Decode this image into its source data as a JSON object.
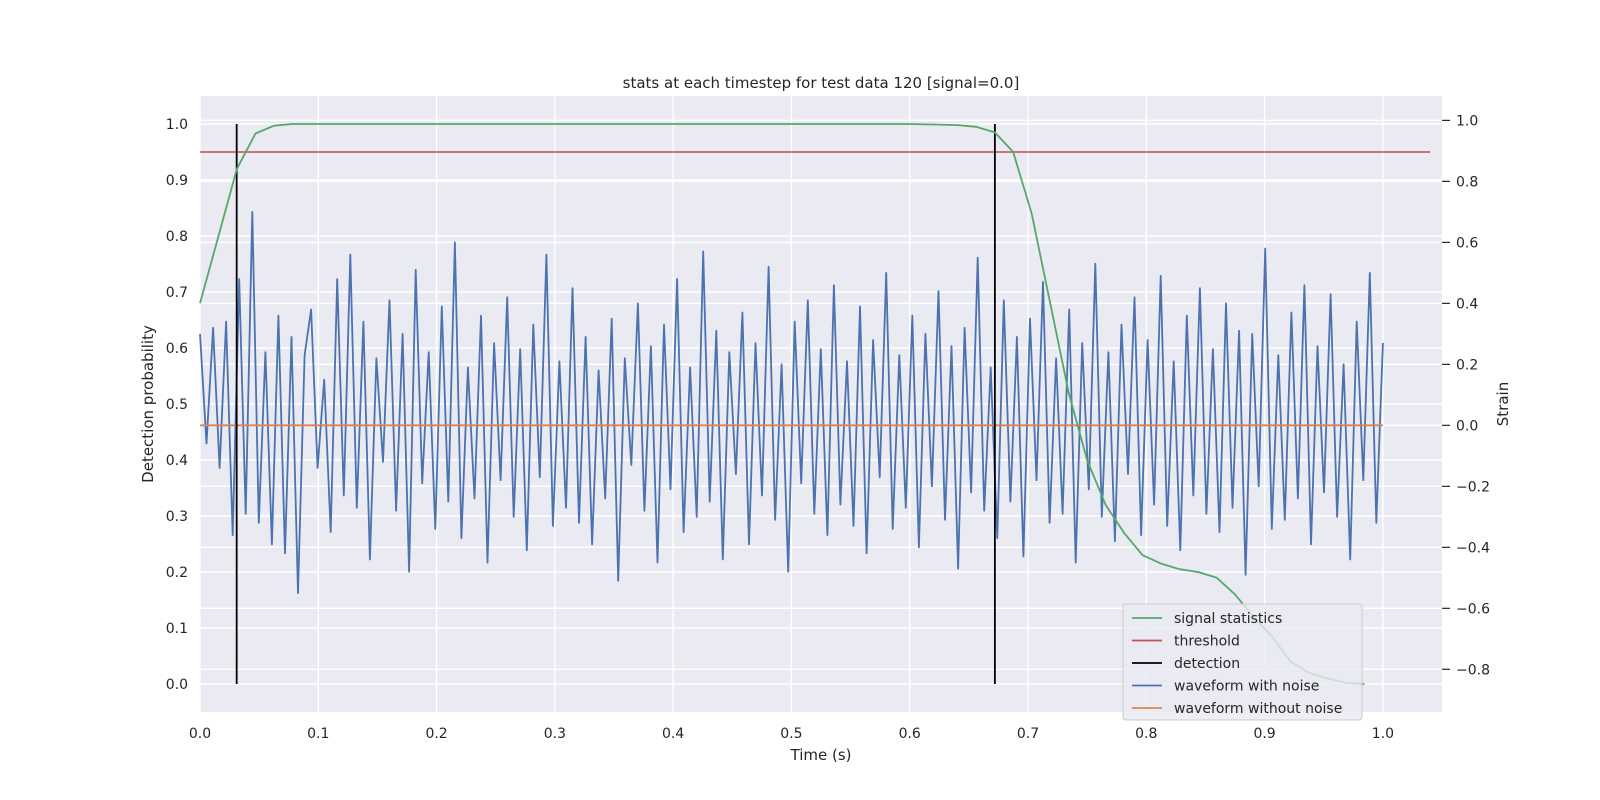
{
  "chart_data": {
    "type": "line",
    "title": "stats at each timestep for test data 120 [signal=0.0]",
    "xlabel": "Time (s)",
    "ylabel": "Detection probability",
    "y2label": "Strain",
    "xlim": [
      0.0,
      1.05
    ],
    "ylim": [
      -0.05,
      1.05
    ],
    "y2lim": [
      -0.94,
      1.08
    ],
    "xticks": [
      "0.0",
      "0.1",
      "0.2",
      "0.3",
      "0.4",
      "0.5",
      "0.6",
      "0.7",
      "0.8",
      "0.9",
      "1.0"
    ],
    "yticks": [
      "0.0",
      "0.1",
      "0.2",
      "0.3",
      "0.4",
      "0.5",
      "0.6",
      "0.7",
      "0.8",
      "0.9",
      "1.0"
    ],
    "y2ticks": [
      "−0.8",
      "−0.6",
      "−0.4",
      "−0.2",
      "0.0",
      "0.2",
      "0.4",
      "0.6",
      "0.8",
      "1.0"
    ],
    "grid": true,
    "legend_position": "bottom-right",
    "legend": [
      {
        "label": "signal statistics",
        "color": "#55a868"
      },
      {
        "label": "threshold",
        "color": "#c44e52"
      },
      {
        "label": "detection",
        "color": "#000000"
      },
      {
        "label": "waveform with noise",
        "color": "#4c72b0"
      },
      {
        "label": "waveform without noise",
        "color": "#dd8452"
      }
    ],
    "signal_statistics": {
      "x": [
        0.0,
        0.0156,
        0.0312,
        0.0469,
        0.0625,
        0.0781,
        0.1,
        0.2,
        0.3,
        0.4,
        0.5,
        0.6,
        0.625,
        0.6406,
        0.6562,
        0.6719,
        0.6875,
        0.7031,
        0.7188,
        0.7344,
        0.75,
        0.7656,
        0.7812,
        0.7969,
        0.8125,
        0.8281,
        0.8438,
        0.8594,
        0.875,
        0.8906,
        0.9062,
        0.9219,
        0.9375,
        0.9531,
        0.9688,
        0.9844
      ],
      "y": [
        0.68,
        0.8,
        0.92,
        0.983,
        0.997,
        1.0,
        1.0,
        1.0,
        1.0,
        1.0,
        1.0,
        1.0,
        0.999,
        0.998,
        0.995,
        0.985,
        0.95,
        0.84,
        0.68,
        0.52,
        0.4,
        0.32,
        0.27,
        0.23,
        0.215,
        0.205,
        0.2,
        0.19,
        0.16,
        0.12,
        0.085,
        0.04,
        0.02,
        0.01,
        0.002,
        0.0
      ]
    },
    "threshold": 0.95,
    "detections_x": [
      0.031,
      0.672
    ],
    "waveform_without_noise": {
      "x": [
        0.0,
        1.0
      ],
      "y": [
        0.0,
        0.0
      ]
    },
    "waveform_with_noise": {
      "x_start": 0.0,
      "x_end": 1.0,
      "y": [
        0.3,
        -0.06,
        0.32,
        -0.14,
        0.34,
        -0.36,
        0.48,
        -0.29,
        0.7,
        -0.32,
        0.24,
        -0.39,
        0.36,
        -0.42,
        0.29,
        -0.55,
        0.23,
        0.38,
        -0.14,
        0.15,
        -0.35,
        0.48,
        -0.23,
        0.56,
        -0.27,
        0.34,
        -0.44,
        0.22,
        -0.12,
        0.41,
        -0.28,
        0.3,
        -0.48,
        0.51,
        -0.19,
        0.24,
        -0.34,
        0.39,
        -0.25,
        0.6,
        -0.37,
        0.19,
        -0.24,
        0.36,
        -0.45,
        0.27,
        -0.18,
        0.42,
        -0.3,
        0.25,
        -0.41,
        0.33,
        -0.17,
        0.56,
        -0.33,
        0.21,
        -0.27,
        0.45,
        -0.32,
        0.29,
        -0.39,
        0.18,
        -0.24,
        0.35,
        -0.51,
        0.22,
        -0.13,
        0.4,
        -0.28,
        0.26,
        -0.45,
        0.33,
        -0.21,
        0.48,
        -0.35,
        0.19,
        -0.3,
        0.57,
        -0.25,
        0.31,
        -0.44,
        0.24,
        -0.16,
        0.37,
        -0.39,
        0.27,
        -0.23,
        0.52,
        -0.31,
        0.2,
        -0.48,
        0.34,
        -0.19,
        0.41,
        -0.29,
        0.25,
        -0.36,
        0.46,
        -0.26,
        0.21,
        -0.33,
        0.39,
        -0.42,
        0.28,
        -0.17,
        0.5,
        -0.34,
        0.23,
        -0.27,
        0.36,
        -0.4,
        0.3,
        -0.2,
        0.44,
        -0.31,
        0.26,
        -0.47,
        0.32,
        -0.22,
        0.55,
        -0.28,
        0.19,
        -0.37,
        0.41,
        -0.25,
        0.29,
        -0.43,
        0.35,
        -0.18,
        0.47,
        -0.32,
        0.22,
        -0.29,
        0.38,
        -0.45,
        0.27,
        -0.21,
        0.53,
        -0.3,
        0.24,
        -0.38,
        0.33,
        -0.16,
        0.42,
        -0.36,
        0.28,
        -0.26,
        0.49,
        -0.33,
        0.21,
        -0.41,
        0.36,
        -0.23,
        0.45,
        -0.29,
        0.25,
        -0.35,
        0.4,
        -0.27,
        0.31,
        -0.49,
        0.3,
        -0.2,
        0.58,
        -0.34,
        0.23,
        -0.31,
        0.37,
        -0.24,
        0.46,
        -0.39,
        0.26,
        -0.22,
        0.43,
        -0.3,
        0.2,
        -0.44,
        0.34,
        -0.18,
        0.5,
        -0.32,
        0.27
      ]
    }
  }
}
